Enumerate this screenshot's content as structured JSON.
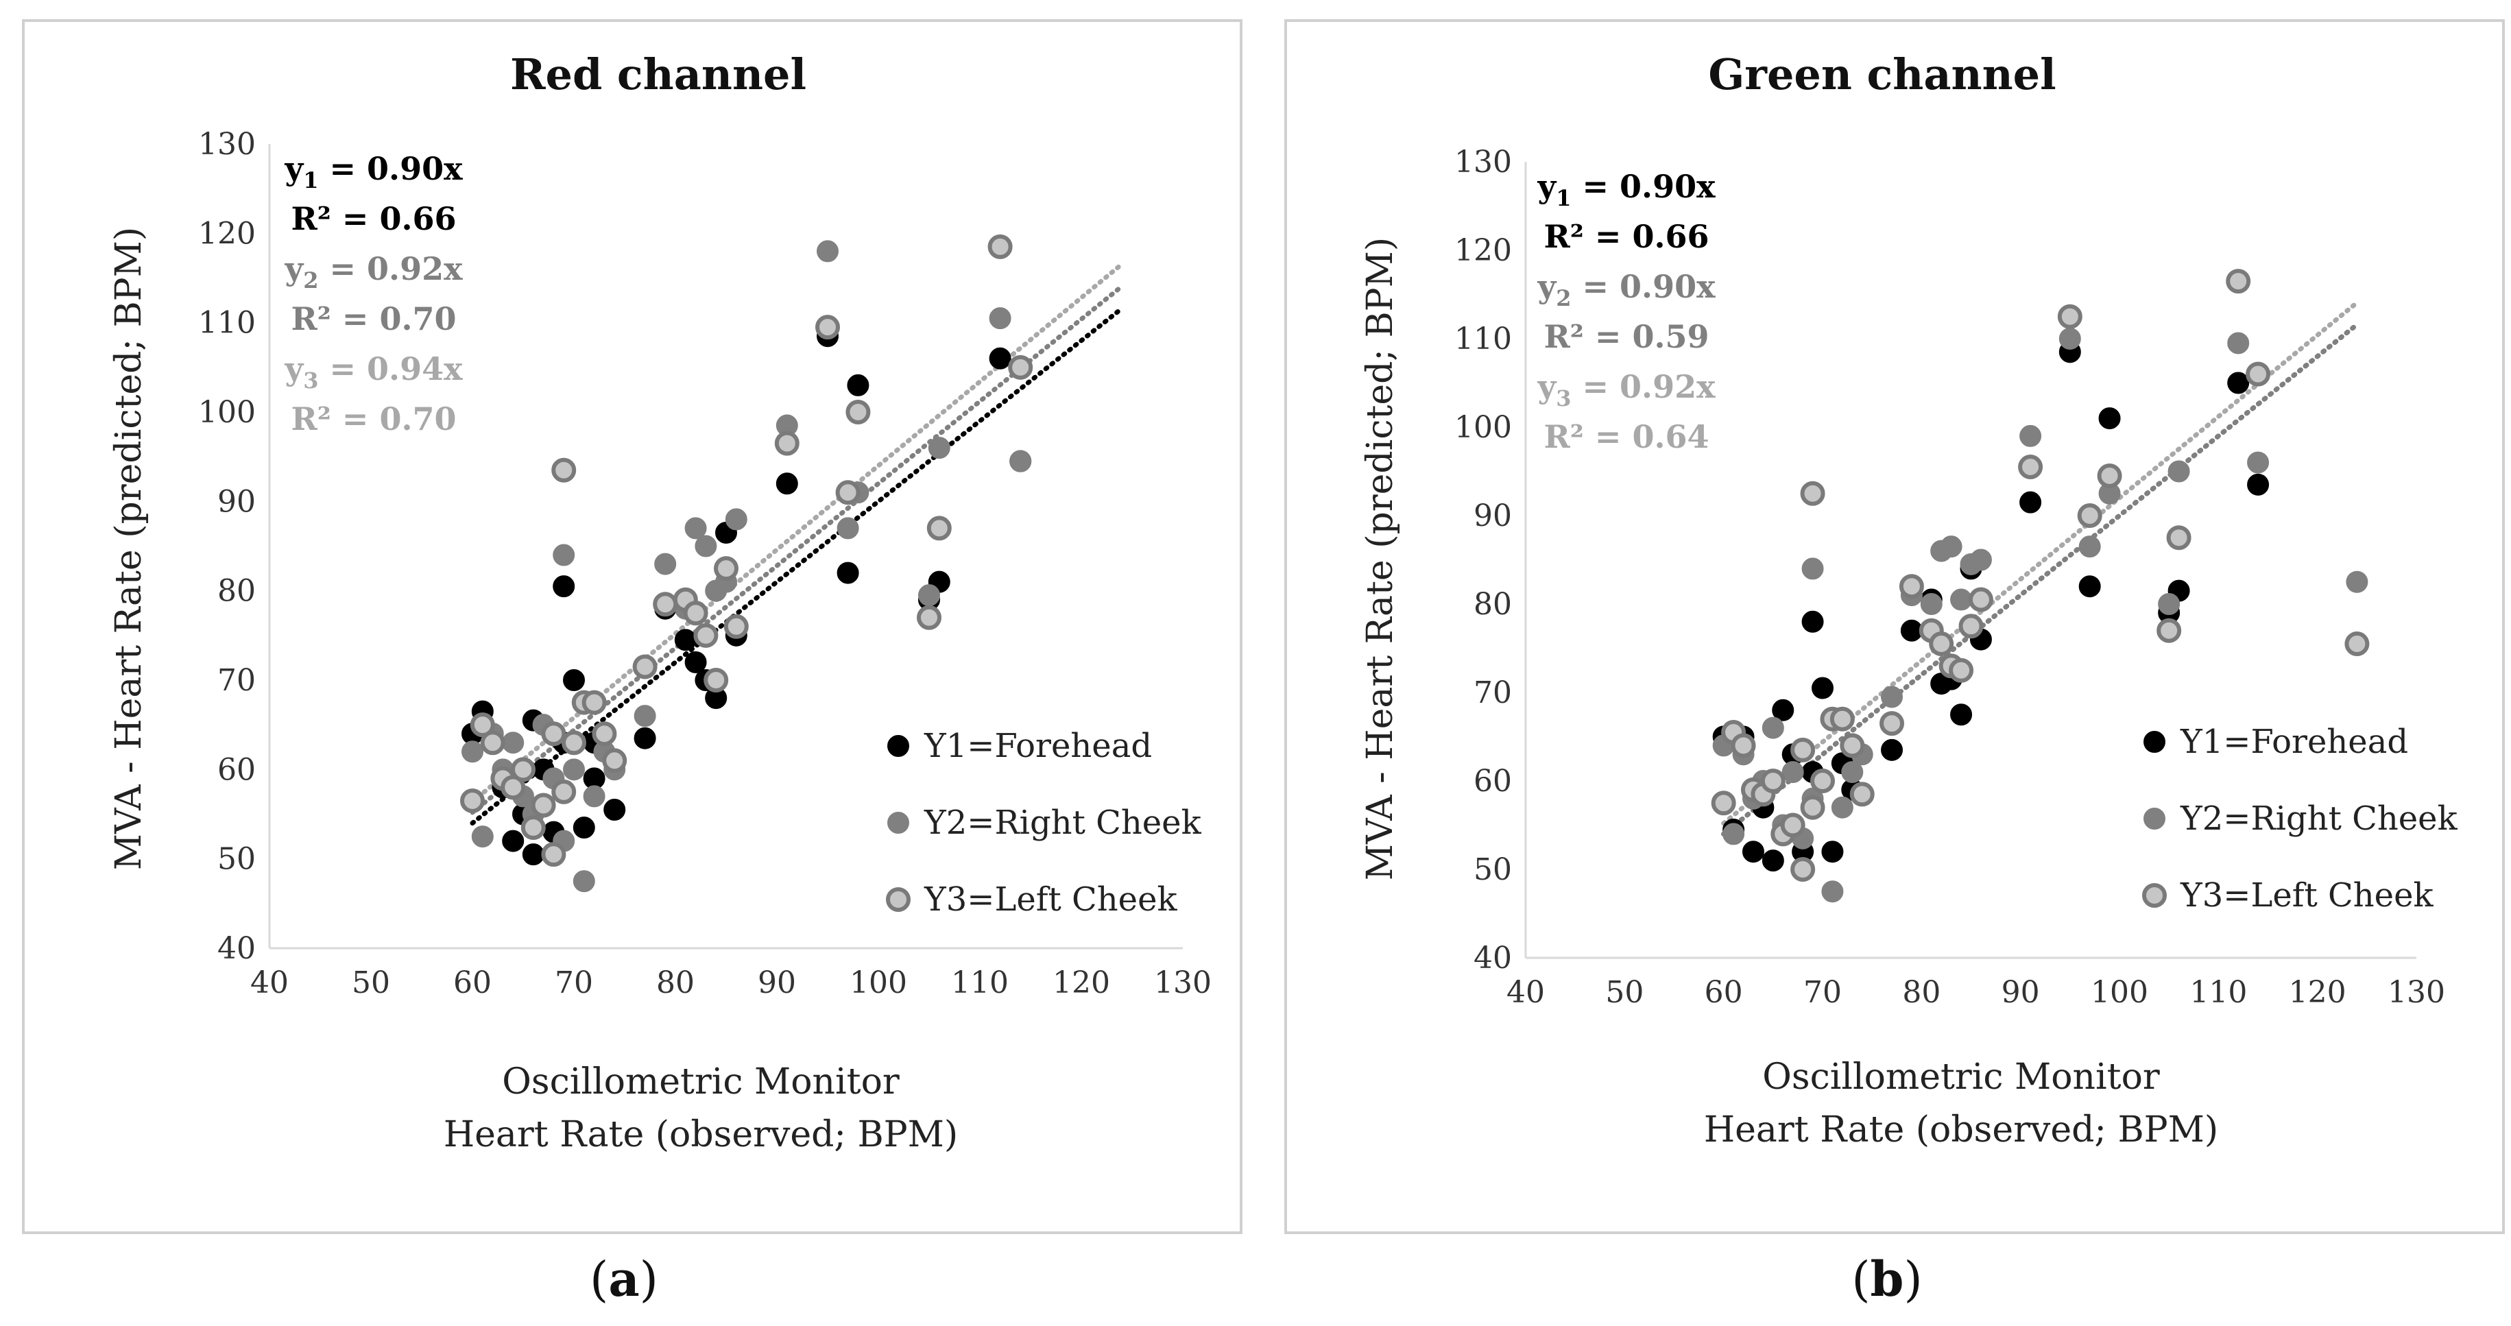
{
  "series_styles": {
    "Y1": {
      "fill": "#000000",
      "stroke": "#000000"
    },
    "Y2": {
      "fill": "#808080",
      "stroke": "#808080"
    },
    "Y3": {
      "fill": "#c6c6c6",
      "stroke": "#7a7a7a"
    }
  },
  "legend": [
    "Y1=Forehead",
    "Y2=Right Cheek",
    "Y3=Left Cheek"
  ],
  "chart_data": [
    {
      "type": "scatter",
      "panel": "a",
      "panel_label": "a",
      "title": "Red channel",
      "xlabel": [
        "Oscillometric Monitor",
        "Heart Rate (observed; BPM)"
      ],
      "ylabel": "MVA - Heart Rate (predicted; BPM)",
      "xlim": [
        40,
        130
      ],
      "ylim": [
        40,
        130
      ],
      "xticks": [
        40,
        50,
        60,
        70,
        80,
        90,
        100,
        110,
        120,
        130
      ],
      "yticks": [
        40,
        50,
        60,
        70,
        80,
        90,
        100,
        110,
        120,
        130
      ],
      "equations": [
        {
          "base": "y",
          "sub": "1",
          "text": " = 0.90x",
          "color": "#000000"
        },
        {
          "base": "",
          "sub": "",
          "text": "R² = 0.66",
          "color": "#000000"
        },
        {
          "base": "y",
          "sub": "2",
          "text": " = 0.92x",
          "color": "#808080"
        },
        {
          "base": "",
          "sub": "",
          "text": "R² = 0.70",
          "color": "#808080"
        },
        {
          "base": "y",
          "sub": "3",
          "text": " = 0.94x",
          "color": "#a8a8a8"
        },
        {
          "base": "",
          "sub": "",
          "text": "R² = 0.70",
          "color": "#a8a8a8"
        }
      ],
      "trendlines": [
        {
          "series": "Y1",
          "slope": 0.9,
          "x_range": [
            60,
            124
          ],
          "color": "#000000"
        },
        {
          "series": "Y2",
          "slope": 0.92,
          "x_range": [
            60,
            124
          ],
          "color": "#808080"
        },
        {
          "series": "Y3",
          "slope": 0.94,
          "x_range": [
            60,
            124
          ],
          "color": "#a8a8a8"
        }
      ],
      "series": [
        {
          "name": "Y1",
          "points": [
            [
              60,
              64
            ],
            [
              61,
              66.5
            ],
            [
              62,
              64
            ],
            [
              63,
              58
            ],
            [
              64,
              52
            ],
            [
              65,
              55
            ],
            [
              66,
              50.5
            ],
            [
              66,
              65.5
            ],
            [
              67,
              60
            ],
            [
              68,
              53
            ],
            [
              69,
              63
            ],
            [
              69,
              80.5
            ],
            [
              70,
              70
            ],
            [
              71,
              53.5
            ],
            [
              72,
              59
            ],
            [
              72,
              63
            ],
            [
              74,
              55.5
            ],
            [
              77,
              63.5
            ],
            [
              79,
              78
            ],
            [
              81,
              74.5
            ],
            [
              82,
              72
            ],
            [
              83,
              70
            ],
            [
              84,
              68
            ],
            [
              85,
              86.5
            ],
            [
              86,
              75
            ],
            [
              91,
              92
            ],
            [
              95,
              108.5
            ],
            [
              97,
              82
            ],
            [
              98,
              103
            ],
            [
              105,
              79
            ],
            [
              106,
              81
            ],
            [
              112,
              106
            ],
            [
              114,
              94.5
            ]
          ]
        },
        {
          "name": "Y2",
          "points": [
            [
              60,
              62
            ],
            [
              61,
              52.5
            ],
            [
              62,
              64
            ],
            [
              63,
              60
            ],
            [
              64,
              63
            ],
            [
              65,
              57
            ],
            [
              66,
              55
            ],
            [
              67,
              65
            ],
            [
              68,
              59
            ],
            [
              69,
              52
            ],
            [
              69,
              84
            ],
            [
              70,
              60
            ],
            [
              71,
              47.5
            ],
            [
              72,
              57
            ],
            [
              73,
              62
            ],
            [
              74,
              60
            ],
            [
              77,
              66
            ],
            [
              79,
              83
            ],
            [
              81,
              78
            ],
            [
              82,
              87
            ],
            [
              83,
              85
            ],
            [
              84,
              80
            ],
            [
              85,
              81
            ],
            [
              86,
              88
            ],
            [
              91,
              98.5
            ],
            [
              95,
              118
            ],
            [
              97,
              87
            ],
            [
              98,
              91
            ],
            [
              105,
              79.5
            ],
            [
              106,
              96
            ],
            [
              112,
              110.5
            ],
            [
              114,
              94.5
            ]
          ]
        },
        {
          "name": "Y3",
          "points": [
            [
              60,
              56.5
            ],
            [
              61,
              65
            ],
            [
              62,
              63
            ],
            [
              63,
              59
            ],
            [
              64,
              58
            ],
            [
              65,
              60
            ],
            [
              66,
              53.5
            ],
            [
              67,
              56
            ],
            [
              68,
              50.5
            ],
            [
              68,
              64
            ],
            [
              69,
              57.5
            ],
            [
              69,
              93.5
            ],
            [
              70,
              63
            ],
            [
              71,
              67.5
            ],
            [
              72,
              67.5
            ],
            [
              73,
              64
            ],
            [
              74,
              61
            ],
            [
              77,
              71.5
            ],
            [
              79,
              78.5
            ],
            [
              81,
              79
            ],
            [
              82,
              77.5
            ],
            [
              83,
              75
            ],
            [
              84,
              70
            ],
            [
              85,
              82.5
            ],
            [
              86,
              76
            ],
            [
              91,
              96.5
            ],
            [
              95,
              109.5
            ],
            [
              97,
              91
            ],
            [
              98,
              100
            ],
            [
              105,
              77
            ],
            [
              106,
              87
            ],
            [
              112,
              118.5
            ],
            [
              114,
              105
            ]
          ]
        }
      ]
    },
    {
      "type": "scatter",
      "panel": "b",
      "panel_label": "b",
      "title": "Green channel",
      "xlabel": [
        "Oscillometric Monitor",
        "Heart Rate (observed; BPM)"
      ],
      "ylabel": "MVA - Heart Rate (predicted; BPM)",
      "xlim": [
        40,
        130
      ],
      "ylim": [
        40,
        130
      ],
      "xticks": [
        40,
        50,
        60,
        70,
        80,
        90,
        100,
        110,
        120,
        130
      ],
      "yticks": [
        40,
        50,
        60,
        70,
        80,
        90,
        100,
        110,
        120,
        130
      ],
      "equations": [
        {
          "base": "y",
          "sub": "1",
          "text": " = 0.90x",
          "color": "#000000"
        },
        {
          "base": "",
          "sub": "",
          "text": "R² = 0.66",
          "color": "#000000"
        },
        {
          "base": "y",
          "sub": "2",
          "text": " = 0.90x",
          "color": "#808080"
        },
        {
          "base": "",
          "sub": "",
          "text": "R² = 0.59",
          "color": "#808080"
        },
        {
          "base": "y",
          "sub": "3",
          "text": " = 0.92x",
          "color": "#a8a8a8"
        },
        {
          "base": "",
          "sub": "",
          "text": "R² = 0.64",
          "color": "#a8a8a8"
        }
      ],
      "trendlines": [
        {
          "series": "Y1",
          "slope": 0.9,
          "x_range": [
            60,
            124
          ],
          "color": "#000000"
        },
        {
          "series": "Y2",
          "slope": 0.9,
          "x_range": [
            60,
            124
          ],
          "color": "#808080"
        },
        {
          "series": "Y3",
          "slope": 0.92,
          "x_range": [
            60,
            124
          ],
          "color": "#a8a8a8"
        }
      ],
      "series": [
        {
          "name": "Y1",
          "points": [
            [
              60,
              65
            ],
            [
              61,
              54.5
            ],
            [
              62,
              65
            ],
            [
              63,
              52
            ],
            [
              64,
              57
            ],
            [
              65,
              51
            ],
            [
              66,
              68
            ],
            [
              67,
              63
            ],
            [
              68,
              52
            ],
            [
              69,
              61
            ],
            [
              69,
              78
            ],
            [
              70,
              70.5
            ],
            [
              71,
              52
            ],
            [
              72,
              62
            ],
            [
              73,
              59
            ],
            [
              74,
              58.5
            ],
            [
              77,
              63.5
            ],
            [
              79,
              77
            ],
            [
              81,
              80.5
            ],
            [
              82,
              71
            ],
            [
              83,
              71.5
            ],
            [
              84,
              67.5
            ],
            [
              85,
              84
            ],
            [
              86,
              76
            ],
            [
              91,
              91.5
            ],
            [
              95,
              108.5
            ],
            [
              97,
              82
            ],
            [
              99,
              101
            ],
            [
              105,
              79
            ],
            [
              106,
              81.5
            ],
            [
              112,
              105
            ],
            [
              114,
              93.5
            ]
          ]
        },
        {
          "name": "Y2",
          "points": [
            [
              60,
              64
            ],
            [
              61,
              54
            ],
            [
              62,
              63
            ],
            [
              63,
              58
            ],
            [
              64,
              60
            ],
            [
              65,
              66
            ],
            [
              66,
              55
            ],
            [
              67,
              61
            ],
            [
              68,
              53.5
            ],
            [
              69,
              58
            ],
            [
              69,
              84
            ],
            [
              70,
              60
            ],
            [
              71,
              47.5
            ],
            [
              72,
              57
            ],
            [
              73,
              61
            ],
            [
              74,
              63
            ],
            [
              77,
              69.5
            ],
            [
              79,
              81
            ],
            [
              81,
              80
            ],
            [
              82,
              86
            ],
            [
              83,
              86.5
            ],
            [
              84,
              80.5
            ],
            [
              85,
              84.5
            ],
            [
              86,
              85
            ],
            [
              91,
              99
            ],
            [
              95,
              110
            ],
            [
              97,
              86.5
            ],
            [
              99,
              92.5
            ],
            [
              105,
              80
            ],
            [
              106,
              95
            ],
            [
              112,
              109.5
            ],
            [
              114,
              96
            ],
            [
              124,
              82.5
            ]
          ]
        },
        {
          "name": "Y3",
          "points": [
            [
              60,
              57.5
            ],
            [
              61,
              65.5
            ],
            [
              62,
              64
            ],
            [
              63,
              59
            ],
            [
              64,
              58.5
            ],
            [
              65,
              60
            ],
            [
              66,
              54
            ],
            [
              67,
              55
            ],
            [
              68,
              50
            ],
            [
              68,
              63.5
            ],
            [
              69,
              57
            ],
            [
              69,
              92.5
            ],
            [
              70,
              60
            ],
            [
              71,
              67
            ],
            [
              72,
              67
            ],
            [
              73,
              64
            ],
            [
              74,
              58.5
            ],
            [
              77,
              66.5
            ],
            [
              79,
              82
            ],
            [
              81,
              77
            ],
            [
              82,
              75.5
            ],
            [
              83,
              73
            ],
            [
              84,
              72.5
            ],
            [
              85,
              77.5
            ],
            [
              86,
              80.5
            ],
            [
              91,
              95.5
            ],
            [
              95,
              112.5
            ],
            [
              97,
              90
            ],
            [
              99,
              94.5
            ],
            [
              105,
              77
            ],
            [
              106,
              87.5
            ],
            [
              112,
              116.5
            ],
            [
              114,
              106
            ],
            [
              124,
              75.5
            ]
          ]
        }
      ]
    }
  ]
}
